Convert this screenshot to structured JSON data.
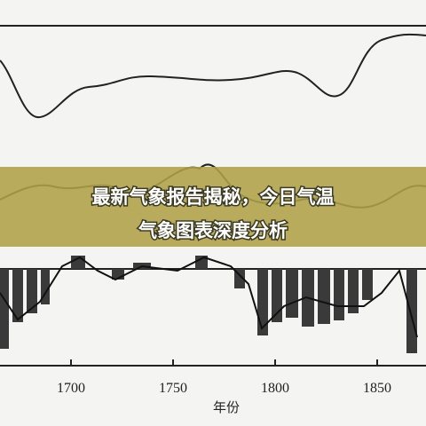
{
  "banner": {
    "lines": [
      "最新气象报告揭秘，今日气温",
      "气象图表深度分析"
    ]
  },
  "axis": {
    "ticks": [
      "1700",
      "1750",
      "1800",
      "1850"
    ],
    "label": "年份"
  }
}
